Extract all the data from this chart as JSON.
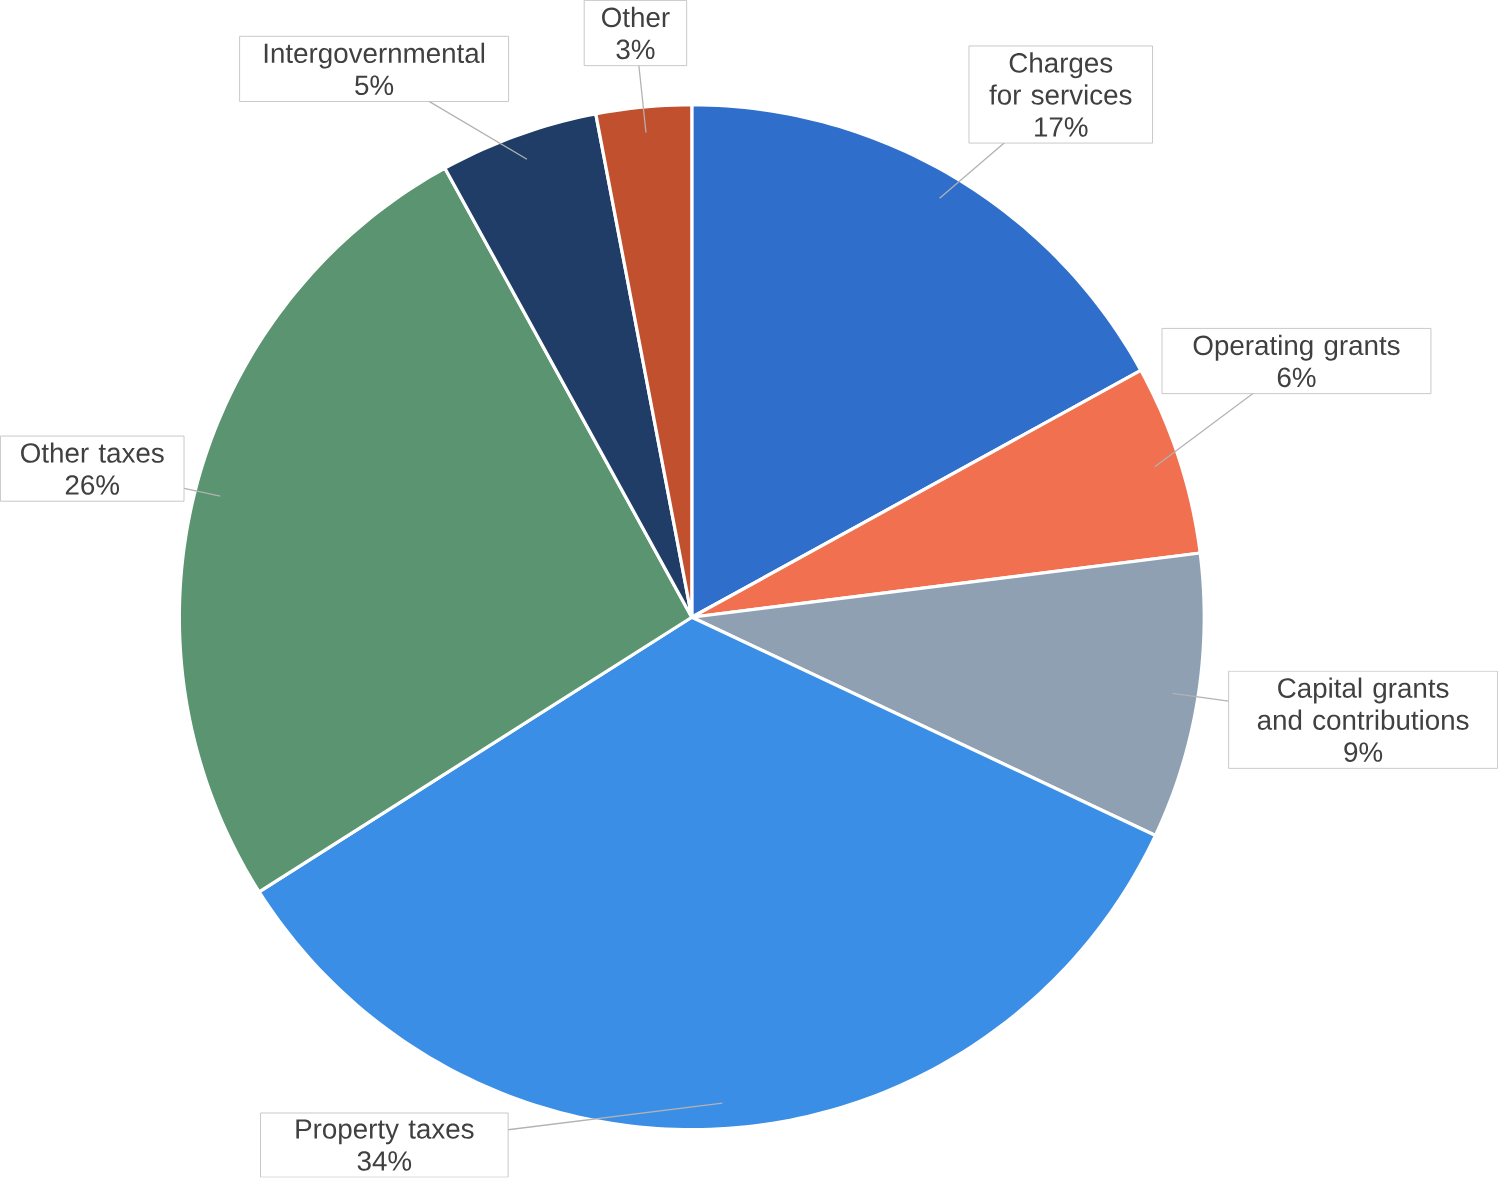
{
  "chart_data": {
    "type": "pie",
    "categories": [
      "Charges for services",
      "Operating grants",
      "Capital grants and contributions",
      "Property taxes",
      "Other taxes",
      "Intergovernmental",
      "Other"
    ],
    "values": [
      17,
      6,
      9,
      34,
      26,
      5,
      3
    ],
    "value_labels": [
      "17%",
      "6%",
      "9%",
      "34%",
      "26%",
      "5%",
      "3%"
    ],
    "colors": [
      "#2f6fcb",
      "#f0704f",
      "#8fa0b3",
      "#3a8ee6",
      "#5a9470",
      "#1f3d66",
      "#c0502e"
    ]
  }
}
